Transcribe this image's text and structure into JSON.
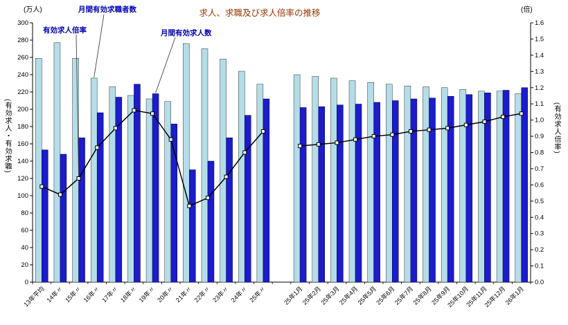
{
  "title": "求人、求職及び求人倍率の推移",
  "units": {
    "left": "(万人)",
    "right": "(倍)"
  },
  "axis_labels": {
    "left": "(有効求人・有効求職)",
    "right": "(有効求人倍率)"
  },
  "annotations": {
    "seekers": "月間有効求職者数",
    "ratio": "有効求人倍率",
    "openings": "月間有効求人数"
  },
  "chart_data": {
    "type": "bar",
    "subtype": "grouped bars with line on secondary axis",
    "title": "求人、求職及び求人倍率の推移",
    "left_axis": {
      "label": "(万人)",
      "min": 0,
      "max": 300,
      "step": 20
    },
    "right_axis": {
      "label": "(倍)",
      "min": 0.0,
      "max": 1.6,
      "step": 0.1
    },
    "grid": false,
    "legend_position": "annotations with leader lines at top-left",
    "series": [
      {
        "name": "月間有効求職者数",
        "type": "bar",
        "axis": "left",
        "color": "#b4dde8"
      },
      {
        "name": "月間有効求人数",
        "type": "bar",
        "axis": "left",
        "color": "#1c1ccb"
      },
      {
        "name": "有効求人倍率",
        "type": "line",
        "axis": "right",
        "color": "#000000",
        "marker": "white-square"
      }
    ],
    "groups": [
      {
        "categories": [
          "13年平均",
          "14年〃",
          "15年〃",
          "16年〃",
          "17年〃",
          "18年〃",
          "19年〃",
          "20年〃",
          "21年〃",
          "22年〃",
          "23年〃",
          "24年〃",
          "25年〃"
        ],
        "seekers": [
          259,
          277,
          259,
          236,
          226,
          216,
          212,
          209,
          276,
          270,
          258,
          244,
          229
        ],
        "openings": [
          153,
          148,
          167,
          196,
          214,
          229,
          218,
          183,
          130,
          140,
          167,
          193,
          212
        ],
        "ratio": [
          0.59,
          0.54,
          0.64,
          0.83,
          0.95,
          1.06,
          1.04,
          0.88,
          0.47,
          0.52,
          0.65,
          0.8,
          0.93
        ]
      },
      {
        "categories": [
          "25年1月",
          "25年2月",
          "25年3月",
          "25年4月",
          "25年5月",
          "25年6月",
          "25年7月",
          "25年8月",
          "25年9月",
          "25年10月",
          "25年11月",
          "25年12月",
          "26年1月"
        ],
        "seekers": [
          240,
          238,
          236,
          233,
          231,
          229,
          227,
          226,
          225,
          223,
          221,
          221,
          218
        ],
        "openings": [
          202,
          203,
          205,
          206,
          208,
          210,
          212,
          213,
          215,
          217,
          219,
          222,
          225
        ],
        "ratio": [
          0.84,
          0.85,
          0.86,
          0.88,
          0.9,
          0.91,
          0.93,
          0.94,
          0.95,
          0.97,
          0.99,
          1.02,
          1.04
        ]
      }
    ]
  }
}
